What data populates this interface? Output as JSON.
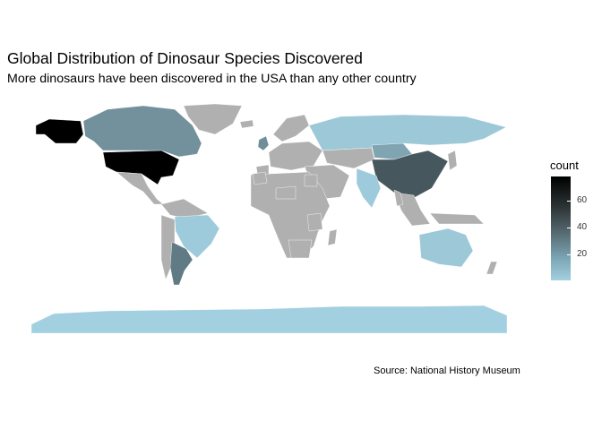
{
  "title": "Global Distribution of Dinosaur Species Discovered",
  "subtitle": "More dinosaurs have been discovered in the USA than any other country",
  "caption": "Source: National History Museum",
  "legend": {
    "title": "count",
    "ticks": [
      "60",
      "40",
      "20"
    ],
    "range": [
      1,
      74
    ],
    "colors": {
      "low": "#a2d0e1",
      "high": "#000000",
      "no_data": "#b0b0b0"
    }
  },
  "map_data": {
    "type": "choropleth",
    "variable": "count",
    "regions": [
      {
        "name": "USA",
        "value": 74
      },
      {
        "name": "China",
        "value": 45
      },
      {
        "name": "Argentina",
        "value": 32
      },
      {
        "name": "Canada",
        "value": 24
      },
      {
        "name": "Mongolia",
        "value": 17
      },
      {
        "name": "United Kingdom",
        "value": 25
      },
      {
        "name": "Russia",
        "value": 4
      },
      {
        "name": "Australia",
        "value": 4
      },
      {
        "name": "Brazil",
        "value": 3
      },
      {
        "name": "India",
        "value": 3
      },
      {
        "name": "Antarctica",
        "value": 1
      }
    ]
  }
}
